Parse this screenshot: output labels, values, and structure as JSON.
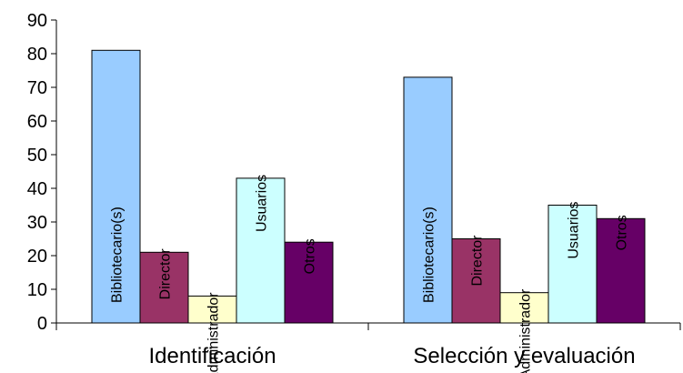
{
  "chart_data": {
    "type": "bar",
    "categories": [
      "Identificación",
      "Selección y evaluación"
    ],
    "series": [
      {
        "name": "Bibliotecario(s)",
        "values": [
          81,
          73
        ],
        "color": "#99ccff"
      },
      {
        "name": "Director",
        "values": [
          21,
          25
        ],
        "color": "#993366"
      },
      {
        "name": "Administrador",
        "values": [
          8,
          9
        ],
        "color": "#ffffcc"
      },
      {
        "name": "Usuarios",
        "values": [
          43,
          35
        ],
        "color": "#ccffff"
      },
      {
        "name": "Otros",
        "values": [
          24,
          31
        ],
        "color": "#660066"
      }
    ],
    "y_ticks": [
      "0",
      "10",
      "20",
      "30",
      "40",
      "50",
      "60",
      "70",
      "80",
      "90"
    ],
    "ylim": [
      0,
      90
    ],
    "grid": false,
    "legend": "none",
    "title": "",
    "xlabel": "",
    "ylabel": ""
  }
}
